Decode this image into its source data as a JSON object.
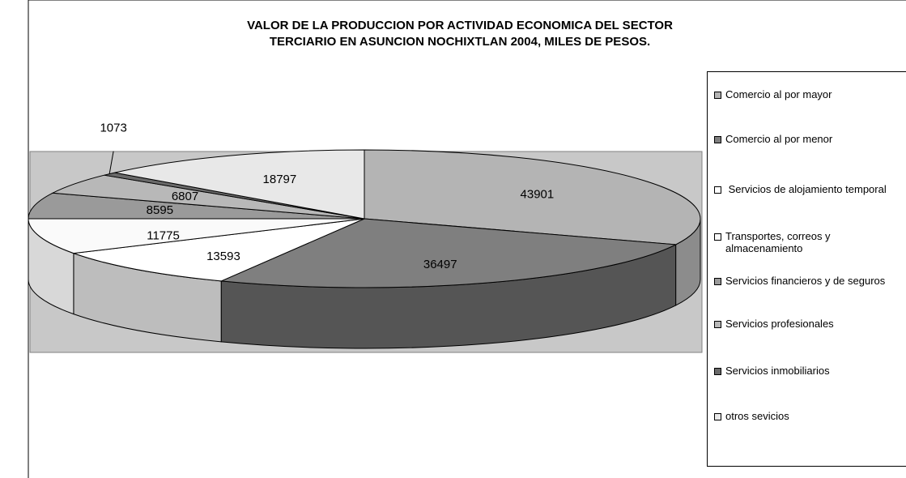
{
  "chart_data": {
    "type": "pie3d",
    "title": [
      "VALOR DE LA PRODUCCION POR ACTIVIDAD ECONOMICA DEL SECTOR",
      "TERCIARIO EN ASUNCION NOCHIXTLAN 2004, MILES DE PESOS."
    ],
    "categories": [
      "Comercio al por mayor",
      "Comercio al por menor",
      " Servicios de alojamiento temporal",
      "Transportes, correos y almacenamiento",
      "Servicios financieros y de seguros",
      "Servicios profesionales",
      "Servicios inmobiliarios",
      "otros sevicios"
    ],
    "values": [
      43901,
      36497,
      13593,
      11775,
      8595,
      6807,
      1073,
      18797
    ],
    "colors": [
      "#b4b4b4",
      "#7f7f7f",
      "#ffffff",
      "#fafafa",
      "#9a9a9a",
      "#b8b8b8",
      "#6a6a6a",
      "#e8e8e8"
    ],
    "side_colors": [
      "#8c8c8c",
      "#555555",
      "#bdbdbd",
      "#d8d8d8",
      "#8a8a8a",
      "#a0a0a0",
      "#4a4a4a",
      "#c8c8c8"
    ],
    "plot_background": "#c8c8c8",
    "legend": "right"
  }
}
